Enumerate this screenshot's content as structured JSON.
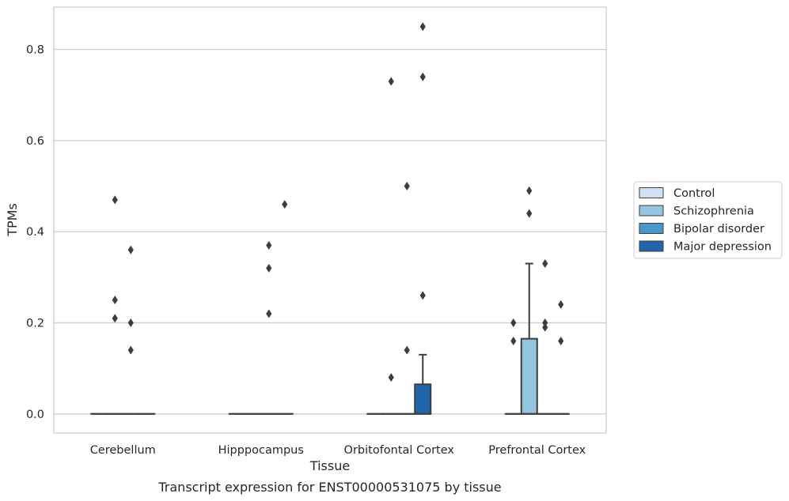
{
  "chart_data": {
    "type": "box",
    "xlabel": "Tissue",
    "ylabel": "TPMs",
    "caption": "Transcript expression for ENST00000531075 by tissue",
    "categories": [
      "Cerebellum",
      "Hipppocampus",
      "Orbitofontal Cortex",
      "Prefrontal Cortex"
    ],
    "ylim": [
      -0.042,
      0.893
    ],
    "yticks": [
      {
        "value": 0.0,
        "label": "0.0"
      },
      {
        "value": 0.2,
        "label": "0.2"
      },
      {
        "value": 0.4,
        "label": "0.4"
      },
      {
        "value": 0.6,
        "label": "0.6"
      },
      {
        "value": 0.8,
        "label": "0.8"
      }
    ],
    "grid": "horizontal",
    "legend": {
      "position": "right",
      "entries": [
        {
          "name": "Control",
          "color": "#d0e1f2"
        },
        {
          "name": "Schizophrenia",
          "color": "#94c4df"
        },
        {
          "name": "Bipolar disorder",
          "color": "#4a98c9"
        },
        {
          "name": "Major depression",
          "color": "#2166ac"
        }
      ]
    },
    "boxes": [
      {
        "category": "Cerebellum",
        "series": "Control",
        "q1": 0,
        "median": 0,
        "q3": 0,
        "whisker_low": 0,
        "whisker_high": 0,
        "outliers": []
      },
      {
        "category": "Cerebellum",
        "series": "Schizophrenia",
        "q1": 0,
        "median": 0,
        "q3": 0,
        "whisker_low": 0,
        "whisker_high": 0,
        "outliers": [
          0.47,
          0.25,
          0.21
        ]
      },
      {
        "category": "Cerebellum",
        "series": "Bipolar disorder",
        "q1": 0,
        "median": 0,
        "q3": 0,
        "whisker_low": 0,
        "whisker_high": 0,
        "outliers": [
          0.36,
          0.2,
          0.14
        ]
      },
      {
        "category": "Cerebellum",
        "series": "Major depression",
        "q1": 0,
        "median": 0,
        "q3": 0,
        "whisker_low": 0,
        "whisker_high": 0,
        "outliers": []
      },
      {
        "category": "Hipppocampus",
        "series": "Control",
        "q1": 0,
        "median": 0,
        "q3": 0,
        "whisker_low": 0,
        "whisker_high": 0,
        "outliers": []
      },
      {
        "category": "Hipppocampus",
        "series": "Schizophrenia",
        "q1": 0,
        "median": 0,
        "q3": 0,
        "whisker_low": 0,
        "whisker_high": 0,
        "outliers": []
      },
      {
        "category": "Hipppocampus",
        "series": "Bipolar disorder",
        "q1": 0,
        "median": 0,
        "q3": 0,
        "whisker_low": 0,
        "whisker_high": 0,
        "outliers": [
          0.37,
          0.32,
          0.22
        ]
      },
      {
        "category": "Hipppocampus",
        "series": "Major depression",
        "q1": 0,
        "median": 0,
        "q3": 0,
        "whisker_low": 0,
        "whisker_high": 0,
        "outliers": [
          0.46
        ]
      },
      {
        "category": "Orbitofontal Cortex",
        "series": "Control",
        "q1": 0,
        "median": 0,
        "q3": 0,
        "whisker_low": 0,
        "whisker_high": 0,
        "outliers": []
      },
      {
        "category": "Orbitofontal Cortex",
        "series": "Schizophrenia",
        "q1": 0,
        "median": 0,
        "q3": 0,
        "whisker_low": 0,
        "whisker_high": 0,
        "outliers": [
          0.73,
          0.08
        ]
      },
      {
        "category": "Orbitofontal Cortex",
        "series": "Bipolar disorder",
        "q1": 0,
        "median": 0,
        "q3": 0,
        "whisker_low": 0,
        "whisker_high": 0,
        "outliers": [
          0.5,
          0.14
        ]
      },
      {
        "category": "Orbitofontal Cortex",
        "series": "Major depression",
        "q1": 0,
        "median": 0,
        "q3": 0.065,
        "whisker_low": 0,
        "whisker_high": 0.13,
        "outliers": [
          0.85,
          0.74,
          0.26
        ]
      },
      {
        "category": "Prefrontal Cortex",
        "series": "Control",
        "q1": 0,
        "median": 0,
        "q3": 0,
        "whisker_low": 0,
        "whisker_high": 0,
        "outliers": [
          0.2,
          0.16
        ]
      },
      {
        "category": "Prefrontal Cortex",
        "series": "Schizophrenia",
        "q1": 0,
        "median": 0,
        "q3": 0.165,
        "whisker_low": 0,
        "whisker_high": 0.33,
        "outliers": [
          0.49,
          0.44
        ]
      },
      {
        "category": "Prefrontal Cortex",
        "series": "Bipolar disorder",
        "q1": 0,
        "median": 0,
        "q3": 0,
        "whisker_low": 0,
        "whisker_high": 0,
        "outliers": [
          0.33,
          0.2,
          0.19
        ]
      },
      {
        "category": "Prefrontal Cortex",
        "series": "Major depression",
        "q1": 0,
        "median": 0,
        "q3": 0,
        "whisker_low": 0,
        "whisker_high": 0,
        "outliers": [
          0.24,
          0.16
        ]
      }
    ]
  }
}
